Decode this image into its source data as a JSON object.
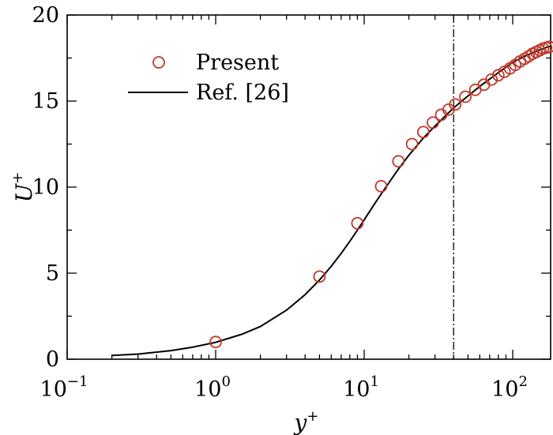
{
  "chart_data": {
    "type": "line",
    "title": "",
    "xlabel": "y",
    "xlabel_sup": "+",
    "ylabel": "U",
    "ylabel_sup": "+",
    "xscale": "log",
    "xlim": [
      0.1,
      180
    ],
    "ylim": [
      0,
      20
    ],
    "x_ticks": [
      {
        "value": 0.1,
        "base": "10",
        "exp": "−1"
      },
      {
        "value": 1,
        "base": "10",
        "exp": "0"
      },
      {
        "value": 10,
        "base": "10",
        "exp": "1"
      },
      {
        "value": 100,
        "base": "10",
        "exp": "2"
      }
    ],
    "y_ticks": [
      0,
      5,
      10,
      15,
      20
    ],
    "grid": false,
    "legend_position": "top-left",
    "reference_line": {
      "x": 40,
      "style": "dash-dot"
    },
    "series": [
      {
        "name": "Present",
        "kind": "scatter",
        "marker": "open-circle",
        "color": "#c0392b",
        "x": [
          1,
          5,
          9,
          13,
          17,
          21,
          25,
          29,
          33,
          37,
          41,
          48,
          56,
          64,
          72,
          80,
          88,
          96,
          104,
          112,
          120,
          128,
          136,
          144,
          152,
          160,
          168,
          176
        ],
        "y": [
          1.0,
          4.8,
          7.9,
          10.05,
          11.5,
          12.5,
          13.2,
          13.75,
          14.2,
          14.5,
          14.8,
          15.25,
          15.65,
          15.95,
          16.25,
          16.5,
          16.7,
          16.9,
          17.1,
          17.3,
          17.45,
          17.6,
          17.75,
          17.85,
          17.95,
          18.05,
          18.1,
          18.15
        ]
      },
      {
        "name": "Ref. [26]",
        "kind": "line",
        "color": "#000000",
        "x": [
          0.2,
          0.3,
          0.5,
          0.7,
          1,
          1.5,
          2,
          3,
          4,
          5,
          6,
          7,
          8,
          9,
          10,
          12,
          14,
          17,
          20,
          25,
          30,
          40,
          50,
          60,
          80,
          100,
          120,
          150,
          180
        ],
        "y": [
          0.22,
          0.3,
          0.5,
          0.7,
          0.98,
          1.45,
          1.9,
          2.85,
          3.75,
          4.6,
          5.4,
          6.15,
          6.85,
          7.5,
          8.1,
          9.15,
          10.0,
          11.05,
          11.85,
          12.85,
          13.55,
          14.6,
          15.3,
          15.85,
          16.65,
          17.25,
          17.6,
          17.95,
          18.2
        ]
      }
    ]
  }
}
